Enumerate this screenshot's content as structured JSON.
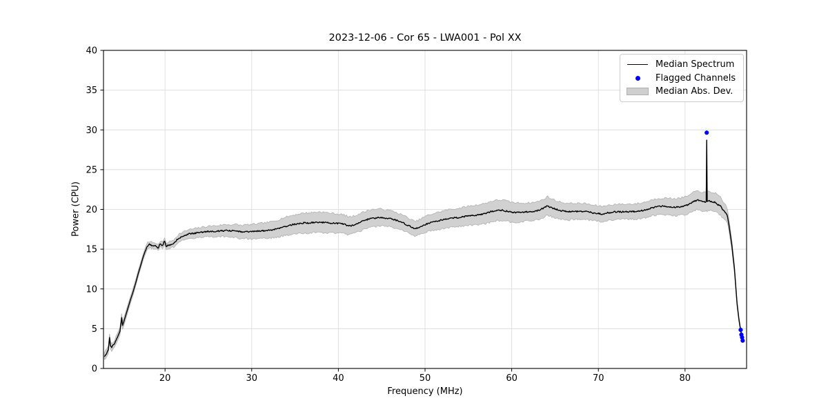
{
  "chart_data": {
    "type": "line",
    "title": "2023-12-06 - Cor 65 - LWA001 - Pol XX",
    "xlabel": "Frequency (MHz)",
    "ylabel": "Power (CPU)",
    "xlim": [
      12.9,
      87.1
    ],
    "ylim": [
      0,
      40
    ],
    "xticks": [
      20,
      30,
      40,
      50,
      60,
      70,
      80
    ],
    "yticks": [
      0,
      5,
      10,
      15,
      20,
      25,
      30,
      35,
      40
    ],
    "grid": true,
    "grid_color": "#dedede",
    "legend_position": "upper right",
    "line_noise": 0.09,
    "band_noise": 0.12,
    "series": [
      {
        "name": "Median Spectrum",
        "type": "line",
        "color": "#000000",
        "points": [
          [
            13.0,
            1.55
          ],
          [
            13.15,
            1.75
          ],
          [
            13.3,
            2.0
          ],
          [
            13.45,
            2.3
          ],
          [
            13.6,
            3.9
          ],
          [
            13.7,
            2.9
          ],
          [
            13.85,
            2.7
          ],
          [
            14.0,
            2.9
          ],
          [
            14.2,
            3.15
          ],
          [
            14.5,
            3.9
          ],
          [
            14.8,
            4.7
          ],
          [
            15.0,
            6.4
          ],
          [
            15.1,
            5.4
          ],
          [
            15.25,
            5.9
          ],
          [
            15.5,
            6.8
          ],
          [
            15.75,
            7.7
          ],
          [
            16.0,
            8.6
          ],
          [
            16.3,
            9.6
          ],
          [
            16.6,
            10.7
          ],
          [
            16.9,
            11.9
          ],
          [
            17.2,
            13.0
          ],
          [
            17.5,
            14.1
          ],
          [
            17.8,
            15.0
          ],
          [
            18.0,
            15.45
          ],
          [
            18.2,
            15.6
          ],
          [
            18.45,
            15.5
          ],
          [
            18.7,
            15.45
          ],
          [
            18.95,
            15.4
          ],
          [
            19.2,
            15.2
          ],
          [
            19.45,
            15.65
          ],
          [
            19.7,
            15.5
          ],
          [
            19.95,
            16.0
          ],
          [
            20.15,
            15.35
          ],
          [
            20.4,
            15.5
          ],
          [
            20.7,
            15.55
          ],
          [
            21.0,
            15.75
          ],
          [
            21.3,
            16.1
          ],
          [
            21.6,
            16.4
          ],
          [
            22.0,
            16.6
          ],
          [
            22.4,
            16.8
          ],
          [
            22.9,
            16.95
          ],
          [
            23.4,
            17.0
          ],
          [
            24.0,
            17.1
          ],
          [
            24.6,
            17.2
          ],
          [
            25.2,
            17.25
          ],
          [
            25.8,
            17.25
          ],
          [
            26.4,
            17.3
          ],
          [
            27.0,
            17.35
          ],
          [
            27.6,
            17.3
          ],
          [
            28.2,
            17.3
          ],
          [
            28.8,
            17.15
          ],
          [
            29.4,
            17.2
          ],
          [
            30.0,
            17.2
          ],
          [
            30.6,
            17.25
          ],
          [
            31.2,
            17.3
          ],
          [
            31.8,
            17.35
          ],
          [
            32.4,
            17.45
          ],
          [
            33.0,
            17.6
          ],
          [
            33.6,
            17.8
          ],
          [
            34.2,
            17.95
          ],
          [
            34.8,
            18.1
          ],
          [
            35.4,
            18.2
          ],
          [
            36.0,
            18.3
          ],
          [
            36.6,
            18.3
          ],
          [
            37.2,
            18.35
          ],
          [
            37.8,
            18.4
          ],
          [
            38.4,
            18.35
          ],
          [
            39.0,
            18.3
          ],
          [
            39.6,
            18.25
          ],
          [
            40.2,
            18.2
          ],
          [
            40.8,
            18.1
          ],
          [
            41.2,
            17.9
          ],
          [
            41.6,
            18.0
          ],
          [
            42.0,
            18.15
          ],
          [
            42.5,
            18.4
          ],
          [
            43.0,
            18.6
          ],
          [
            43.5,
            18.8
          ],
          [
            44.0,
            18.9
          ],
          [
            44.5,
            18.95
          ],
          [
            45.0,
            19.0
          ],
          [
            45.5,
            18.9
          ],
          [
            46.0,
            18.85
          ],
          [
            46.5,
            18.7
          ],
          [
            47.0,
            18.5
          ],
          [
            47.5,
            18.3
          ],
          [
            48.0,
            18.0
          ],
          [
            48.5,
            17.75
          ],
          [
            48.8,
            17.55
          ],
          [
            49.2,
            17.7
          ],
          [
            49.6,
            17.9
          ],
          [
            50.0,
            18.1
          ],
          [
            50.5,
            18.3
          ],
          [
            51.0,
            18.45
          ],
          [
            51.5,
            18.55
          ],
          [
            52.0,
            18.7
          ],
          [
            53.0,
            18.9
          ],
          [
            54.0,
            19.0
          ],
          [
            55.0,
            19.2
          ],
          [
            56.0,
            19.3
          ],
          [
            57.0,
            19.5
          ],
          [
            57.7,
            19.75
          ],
          [
            58.3,
            19.85
          ],
          [
            59.0,
            19.9
          ],
          [
            59.5,
            19.75
          ],
          [
            60.0,
            19.65
          ],
          [
            60.6,
            19.6
          ],
          [
            61.2,
            19.65
          ],
          [
            61.8,
            19.7
          ],
          [
            62.4,
            19.75
          ],
          [
            63.0,
            19.85
          ],
          [
            63.6,
            20.1
          ],
          [
            64.1,
            20.45
          ],
          [
            64.5,
            20.25
          ],
          [
            64.9,
            20.1
          ],
          [
            65.4,
            19.9
          ],
          [
            66.0,
            19.8
          ],
          [
            66.5,
            19.7
          ],
          [
            67.0,
            19.75
          ],
          [
            67.6,
            19.75
          ],
          [
            68.2,
            19.75
          ],
          [
            68.8,
            19.7
          ],
          [
            69.4,
            19.55
          ],
          [
            70.0,
            19.5
          ],
          [
            70.4,
            19.4
          ],
          [
            70.9,
            19.55
          ],
          [
            71.4,
            19.6
          ],
          [
            72.0,
            19.7
          ],
          [
            72.6,
            19.7
          ],
          [
            73.2,
            19.7
          ],
          [
            73.8,
            19.75
          ],
          [
            74.4,
            19.75
          ],
          [
            75.0,
            19.85
          ],
          [
            75.6,
            20.0
          ],
          [
            76.2,
            20.2
          ],
          [
            76.8,
            20.35
          ],
          [
            77.4,
            20.4
          ],
          [
            78.0,
            20.35
          ],
          [
            78.6,
            20.3
          ],
          [
            79.2,
            20.3
          ],
          [
            79.8,
            20.4
          ],
          [
            80.4,
            20.6
          ],
          [
            81.0,
            21.0
          ],
          [
            81.5,
            21.2
          ],
          [
            82.0,
            20.95
          ],
          [
            82.3,
            20.9
          ],
          [
            82.44,
            21.0
          ],
          [
            82.5,
            28.7
          ],
          [
            82.56,
            21.0
          ],
          [
            82.8,
            21.05
          ],
          [
            83.1,
            20.95
          ],
          [
            83.5,
            20.9
          ],
          [
            83.8,
            20.6
          ],
          [
            84.1,
            20.4
          ],
          [
            84.4,
            19.9
          ],
          [
            84.7,
            19.6
          ],
          [
            84.9,
            19.1
          ],
          [
            85.1,
            17.8
          ],
          [
            85.4,
            15.5
          ],
          [
            85.7,
            12.5
          ],
          [
            86.0,
            8.2
          ],
          [
            86.2,
            6.3
          ],
          [
            86.4,
            4.9
          ],
          [
            86.55,
            4.1
          ],
          [
            86.7,
            3.4
          ]
        ]
      },
      {
        "name": "Flagged Channels",
        "type": "scatter",
        "color": "#0000ff",
        "points": [
          [
            82.5,
            29.65
          ],
          [
            86.42,
            4.85
          ],
          [
            86.5,
            4.25
          ],
          [
            86.58,
            3.9
          ],
          [
            86.65,
            3.5
          ]
        ]
      },
      {
        "name": "Median Abs. Dev.",
        "type": "band",
        "color": "#cccccc",
        "edge_color": "#b0b0b0",
        "around": "Median Spectrum",
        "mad_points": [
          [
            13.0,
            0.5
          ],
          [
            14.0,
            0.45
          ],
          [
            15.0,
            0.5
          ],
          [
            16.0,
            0.45
          ],
          [
            17.0,
            0.4
          ],
          [
            18.0,
            0.4
          ],
          [
            19.0,
            0.35
          ],
          [
            20.0,
            0.4
          ],
          [
            21.0,
            0.45
          ],
          [
            22.0,
            0.5
          ],
          [
            24.0,
            0.6
          ],
          [
            26.0,
            0.7
          ],
          [
            28.0,
            0.8
          ],
          [
            30.0,
            0.9
          ],
          [
            32.0,
            1.0
          ],
          [
            34.0,
            1.15
          ],
          [
            36.0,
            1.25
          ],
          [
            38.0,
            1.3
          ],
          [
            40.0,
            1.2
          ],
          [
            42.0,
            1.1
          ],
          [
            44.0,
            1.1
          ],
          [
            45.0,
            1.05
          ],
          [
            46.0,
            1.0
          ],
          [
            48.0,
            0.95
          ],
          [
            49.0,
            0.9
          ],
          [
            50.0,
            1.0
          ],
          [
            52.0,
            1.1
          ],
          [
            54.0,
            1.15
          ],
          [
            56.0,
            1.25
          ],
          [
            58.0,
            1.3
          ],
          [
            59.0,
            1.3
          ],
          [
            60.0,
            1.25
          ],
          [
            62.0,
            1.1
          ],
          [
            64.0,
            1.15
          ],
          [
            66.0,
            1.05
          ],
          [
            68.0,
            1.0
          ],
          [
            70.0,
            0.95
          ],
          [
            72.0,
            0.95
          ],
          [
            74.0,
            0.95
          ],
          [
            76.0,
            1.0
          ],
          [
            78.0,
            1.05
          ],
          [
            80.0,
            1.1
          ],
          [
            82.0,
            1.2
          ],
          [
            83.0,
            1.2
          ],
          [
            84.0,
            1.1
          ],
          [
            84.5,
            1.0
          ],
          [
            85.0,
            0.8
          ],
          [
            85.5,
            0.6
          ],
          [
            86.0,
            0.4
          ],
          [
            86.5,
            0.25
          ],
          [
            86.7,
            0.2
          ]
        ]
      }
    ]
  }
}
